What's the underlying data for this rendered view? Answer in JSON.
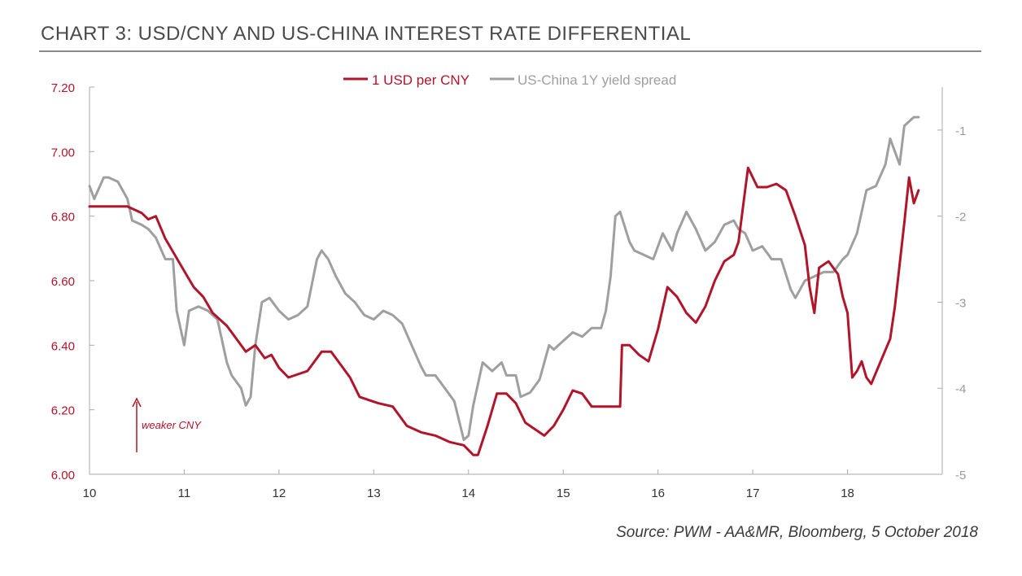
{
  "chart_data": {
    "type": "line",
    "title": "CHART 3: USD/CNY AND US-CHINA INTEREST RATE DIFFERENTIAL",
    "source": "Source: PWM - AA&MR, Bloomberg, 5 October 2018",
    "annotation": "weaker CNY",
    "x_axis": {
      "ticks": [
        "10",
        "11",
        "12",
        "13",
        "14",
        "15",
        "16",
        "17",
        "18"
      ],
      "tick_values": [
        10,
        11,
        12,
        13,
        14,
        15,
        16,
        17,
        18
      ],
      "range": [
        10,
        19
      ]
    },
    "y_left": {
      "ticks": [
        "7.20",
        "7.00",
        "6.80",
        "6.60",
        "6.40",
        "6.20",
        "6.00"
      ],
      "tick_values": [
        7.2,
        7.0,
        6.8,
        6.6,
        6.4,
        6.2,
        6.0
      ],
      "range": [
        6.0,
        7.2
      ]
    },
    "y_right": {
      "ticks": [
        "-1",
        "-2",
        "-3",
        "-4",
        "-5"
      ],
      "tick_values": [
        -1,
        -2,
        -3,
        -4,
        -5
      ],
      "range": [
        -5,
        -0.5
      ]
    },
    "colors": {
      "usdcny": "#b1152a",
      "spread": "#9f9f9f",
      "left_axis_text": "#b1152a",
      "right_axis_text": "#9a9a9a",
      "axis_line": "#aaaaaa"
    },
    "series": [
      {
        "name": "1 USD per CNY",
        "axis": "left",
        "x": [
          10.0,
          10.25,
          10.4,
          10.55,
          10.62,
          10.7,
          10.8,
          10.9,
          11.0,
          11.1,
          11.2,
          11.3,
          11.45,
          11.55,
          11.65,
          11.75,
          11.85,
          11.92,
          12.0,
          12.1,
          12.2,
          12.3,
          12.45,
          12.55,
          12.65,
          12.75,
          12.85,
          12.95,
          13.05,
          13.2,
          13.35,
          13.5,
          13.65,
          13.8,
          13.95,
          14.05,
          14.1,
          14.2,
          14.3,
          14.4,
          14.5,
          14.6,
          14.7,
          14.8,
          14.9,
          15.0,
          15.1,
          15.2,
          15.3,
          15.45,
          15.6,
          15.62,
          15.7,
          15.8,
          15.9,
          16.0,
          16.1,
          16.2,
          16.3,
          16.4,
          16.5,
          16.6,
          16.7,
          16.8,
          16.85,
          16.95,
          17.05,
          17.15,
          17.25,
          17.35,
          17.45,
          17.55,
          17.6,
          17.65,
          17.7,
          17.8,
          17.9,
          17.95,
          18.0,
          18.05,
          18.1,
          18.15,
          18.2,
          18.25,
          18.35,
          18.45,
          18.5,
          18.55,
          18.6,
          18.65,
          18.7,
          18.75
        ],
        "values": [
          6.83,
          6.83,
          6.83,
          6.81,
          6.79,
          6.8,
          6.73,
          6.68,
          6.63,
          6.58,
          6.55,
          6.5,
          6.46,
          6.42,
          6.38,
          6.4,
          6.36,
          6.37,
          6.33,
          6.3,
          6.31,
          6.32,
          6.38,
          6.38,
          6.34,
          6.3,
          6.24,
          6.23,
          6.22,
          6.21,
          6.15,
          6.13,
          6.12,
          6.1,
          6.09,
          6.06,
          6.06,
          6.15,
          6.25,
          6.25,
          6.22,
          6.16,
          6.14,
          6.12,
          6.15,
          6.2,
          6.26,
          6.25,
          6.21,
          6.21,
          6.21,
          6.4,
          6.4,
          6.37,
          6.35,
          6.45,
          6.58,
          6.55,
          6.5,
          6.47,
          6.52,
          6.6,
          6.66,
          6.68,
          6.72,
          6.95,
          6.89,
          6.89,
          6.9,
          6.88,
          6.8,
          6.71,
          6.58,
          6.5,
          6.64,
          6.66,
          6.62,
          6.55,
          6.5,
          6.3,
          6.32,
          6.35,
          6.3,
          6.28,
          6.35,
          6.42,
          6.52,
          6.65,
          6.78,
          6.92,
          6.84,
          6.88
        ]
      },
      {
        "name": "US-China 1Y yield spread",
        "axis": "right",
        "x": [
          10.0,
          10.05,
          10.15,
          10.2,
          10.3,
          10.4,
          10.45,
          10.55,
          10.62,
          10.7,
          10.8,
          10.88,
          10.92,
          11.0,
          11.05,
          11.15,
          11.25,
          11.35,
          11.45,
          11.5,
          11.6,
          11.65,
          11.7,
          11.75,
          11.82,
          11.9,
          12.0,
          12.1,
          12.2,
          12.3,
          12.4,
          12.45,
          12.52,
          12.6,
          12.7,
          12.8,
          12.9,
          13.0,
          13.1,
          13.2,
          13.3,
          13.4,
          13.5,
          13.55,
          13.65,
          13.75,
          13.85,
          13.95,
          14.0,
          14.05,
          14.15,
          14.25,
          14.35,
          14.4,
          14.5,
          14.55,
          14.65,
          14.75,
          14.85,
          14.9,
          15.0,
          15.1,
          15.2,
          15.3,
          15.4,
          15.45,
          15.5,
          15.55,
          15.6,
          15.7,
          15.75,
          15.85,
          15.95,
          16.05,
          16.15,
          16.2,
          16.3,
          16.4,
          16.5,
          16.6,
          16.7,
          16.8,
          16.85,
          16.92,
          17.0,
          17.1,
          17.2,
          17.3,
          17.4,
          17.45,
          17.55,
          17.65,
          17.75,
          17.85,
          17.95,
          18.0,
          18.1,
          18.2,
          18.3,
          18.4,
          18.45,
          18.55,
          18.6,
          18.7,
          18.75
        ],
        "values": [
          -1.65,
          -1.8,
          -1.55,
          -1.55,
          -1.6,
          -1.8,
          -2.05,
          -2.1,
          -2.15,
          -2.25,
          -2.5,
          -2.5,
          -3.1,
          -3.5,
          -3.1,
          -3.05,
          -3.1,
          -3.2,
          -3.7,
          -3.85,
          -4.0,
          -4.2,
          -4.1,
          -3.5,
          -3.0,
          -2.95,
          -3.1,
          -3.2,
          -3.15,
          -3.05,
          -2.5,
          -2.4,
          -2.5,
          -2.7,
          -2.9,
          -3.0,
          -3.15,
          -3.2,
          -3.1,
          -3.15,
          -3.25,
          -3.5,
          -3.75,
          -3.85,
          -3.85,
          -4.0,
          -4.15,
          -4.6,
          -4.55,
          -4.2,
          -3.7,
          -3.8,
          -3.7,
          -3.85,
          -3.85,
          -4.1,
          -4.05,
          -3.9,
          -3.5,
          -3.55,
          -3.45,
          -3.35,
          -3.4,
          -3.3,
          -3.3,
          -3.1,
          -2.7,
          -2.0,
          -1.95,
          -2.3,
          -2.4,
          -2.45,
          -2.5,
          -2.2,
          -2.4,
          -2.2,
          -1.95,
          -2.15,
          -2.4,
          -2.3,
          -2.1,
          -2.05,
          -2.15,
          -2.2,
          -2.4,
          -2.35,
          -2.5,
          -2.5,
          -2.85,
          -2.95,
          -2.75,
          -2.7,
          -2.65,
          -2.65,
          -2.5,
          -2.45,
          -2.2,
          -1.7,
          -1.65,
          -1.4,
          -1.1,
          -1.4,
          -0.95,
          -0.85,
          -0.85
        ]
      }
    ],
    "legend": {
      "position": "top-center"
    }
  }
}
